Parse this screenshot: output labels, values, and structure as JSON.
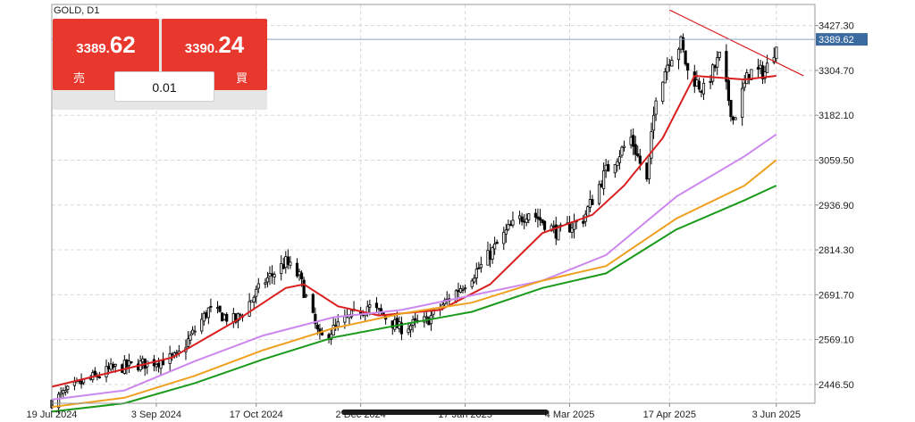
{
  "header": {
    "symbol": "GOLD, D1"
  },
  "trade_panel": {
    "sell": {
      "price_main": "3389.",
      "price_big": "62",
      "label": "売"
    },
    "buy": {
      "price_main": "3390.",
      "price_big": "24",
      "label": "買"
    },
    "lot": "0.01"
  },
  "colors": {
    "bull": "#ffffff",
    "bear": "#000000",
    "ma_short": "#d81e1e",
    "ma_mid": "#cc88ee",
    "ma_long1": "#f0a020",
    "ma_long2": "#1a9a1a",
    "trendline": "#d81e1e",
    "grid": "#d8d8d8",
    "current_price_tag": "#3a6aa0",
    "button": "#e8372c"
  },
  "chart_data": {
    "type": "candlestick",
    "y_ticks": [
      3427.3,
      3304.7,
      3182.1,
      3059.5,
      2936.9,
      2814.3,
      2691.7,
      2569.1,
      2446.5
    ],
    "y_tick_labels": [
      "3427.30",
      "3304.70",
      "3182.10",
      "3059.50",
      "2936.90",
      "2814.30",
      "2691.70",
      "2569.10",
      "2446.50"
    ],
    "ylim": [
      2395,
      3485
    ],
    "x_labels": [
      "19 Jul 2024",
      "3 Sep 2024",
      "17 Oct 2024",
      "2 Dec 2024",
      "17 Jan 2025",
      "4 Mar 2025",
      "17 Apr 2025",
      "3 Jun 2025"
    ],
    "x_label_dates": [
      "2024-07-19",
      "2024-09-03",
      "2024-10-17",
      "2024-12-02",
      "2025-01-17",
      "2025-03-04",
      "2025-04-17",
      "2025-06-03"
    ],
    "x_range": [
      "2024-07-19",
      "2025-06-20"
    ],
    "current_price": 3389.62,
    "current_price_label": "3389.62",
    "close_path": [
      [
        "2024-07-19",
        2400
      ],
      [
        "2024-08-01",
        2450
      ],
      [
        "2024-08-15",
        2490
      ],
      [
        "2024-08-30",
        2505
      ],
      [
        "2024-09-12",
        2520
      ],
      [
        "2024-09-26",
        2650
      ],
      [
        "2024-10-08",
        2620
      ],
      [
        "2024-10-21",
        2730
      ],
      [
        "2024-10-30",
        2780
      ],
      [
        "2024-11-05",
        2740
      ],
      [
        "2024-11-14",
        2570
      ],
      [
        "2024-11-25",
        2620
      ],
      [
        "2024-12-05",
        2660
      ],
      [
        "2024-12-11",
        2640
      ],
      [
        "2024-12-19",
        2600
      ],
      [
        "2024-12-31",
        2620
      ],
      [
        "2025-01-13",
        2700
      ],
      [
        "2025-01-24",
        2770
      ],
      [
        "2025-02-05",
        2870
      ],
      [
        "2025-02-14",
        2920
      ],
      [
        "2025-02-27",
        2860
      ],
      [
        "2025-03-10",
        2900
      ],
      [
        "2025-03-20",
        3030
      ],
      [
        "2025-03-31",
        3120
      ],
      [
        "2025-04-07",
        3000
      ],
      [
        "2025-04-11",
        3240
      ],
      [
        "2025-04-17",
        3340
      ],
      [
        "2025-04-22",
        3380
      ],
      [
        "2025-04-25",
        3300
      ],
      [
        "2025-05-02",
        3250
      ],
      [
        "2025-05-09",
        3340
      ],
      [
        "2025-05-15",
        3170
      ],
      [
        "2025-05-22",
        3300
      ],
      [
        "2025-05-29",
        3300
      ],
      [
        "2025-06-02",
        3360
      ],
      [
        "2025-06-03",
        3389.62
      ]
    ],
    "moving_averages": [
      {
        "key": "ma_short",
        "points": [
          [
            "2024-07-19",
            2440
          ],
          [
            "2024-09-10",
            2520
          ],
          [
            "2024-10-08",
            2620
          ],
          [
            "2024-10-30",
            2710
          ],
          [
            "2024-11-07",
            2720
          ],
          [
            "2024-11-22",
            2660
          ],
          [
            "2024-12-10",
            2635
          ],
          [
            "2025-01-06",
            2650
          ],
          [
            "2025-01-28",
            2720
          ],
          [
            "2025-02-20",
            2860
          ],
          [
            "2025-03-14",
            2910
          ],
          [
            "2025-03-28",
            2990
          ],
          [
            "2025-04-14",
            3120
          ],
          [
            "2025-04-28",
            3290
          ],
          [
            "2025-05-20",
            3280
          ],
          [
            "2025-06-03",
            3290
          ]
        ]
      },
      {
        "key": "ma_mid",
        "points": [
          [
            "2024-07-19",
            2405
          ],
          [
            "2024-08-20",
            2430
          ],
          [
            "2024-09-20",
            2510
          ],
          [
            "2024-10-20",
            2580
          ],
          [
            "2024-11-20",
            2630
          ],
          [
            "2024-12-20",
            2650
          ],
          [
            "2025-01-20",
            2690
          ],
          [
            "2025-02-20",
            2730
          ],
          [
            "2025-03-20",
            2800
          ],
          [
            "2025-04-20",
            2960
          ],
          [
            "2025-05-20",
            3070
          ],
          [
            "2025-06-03",
            3130
          ]
        ]
      },
      {
        "key": "ma_long1",
        "points": [
          [
            "2024-07-19",
            2385
          ],
          [
            "2024-08-20",
            2410
          ],
          [
            "2024-09-20",
            2470
          ],
          [
            "2024-10-20",
            2540
          ],
          [
            "2024-11-20",
            2600
          ],
          [
            "2024-12-20",
            2640
          ],
          [
            "2025-01-20",
            2670
          ],
          [
            "2025-02-20",
            2730
          ],
          [
            "2025-03-20",
            2770
          ],
          [
            "2025-04-20",
            2900
          ],
          [
            "2025-05-20",
            2990
          ],
          [
            "2025-06-03",
            3060
          ]
        ]
      },
      {
        "key": "ma_long2",
        "points": [
          [
            "2024-07-19",
            2372
          ],
          [
            "2024-08-20",
            2395
          ],
          [
            "2024-09-20",
            2450
          ],
          [
            "2024-10-20",
            2515
          ],
          [
            "2024-11-20",
            2575
          ],
          [
            "2024-12-20",
            2610
          ],
          [
            "2025-01-20",
            2645
          ],
          [
            "2025-02-20",
            2710
          ],
          [
            "2025-03-20",
            2750
          ],
          [
            "2025-04-20",
            2870
          ],
          [
            "2025-05-20",
            2950
          ],
          [
            "2025-06-03",
            2990
          ]
        ]
      }
    ],
    "trendline": [
      [
        "2025-04-17",
        3470
      ],
      [
        "2025-06-15",
        3290
      ]
    ],
    "grid": true
  }
}
